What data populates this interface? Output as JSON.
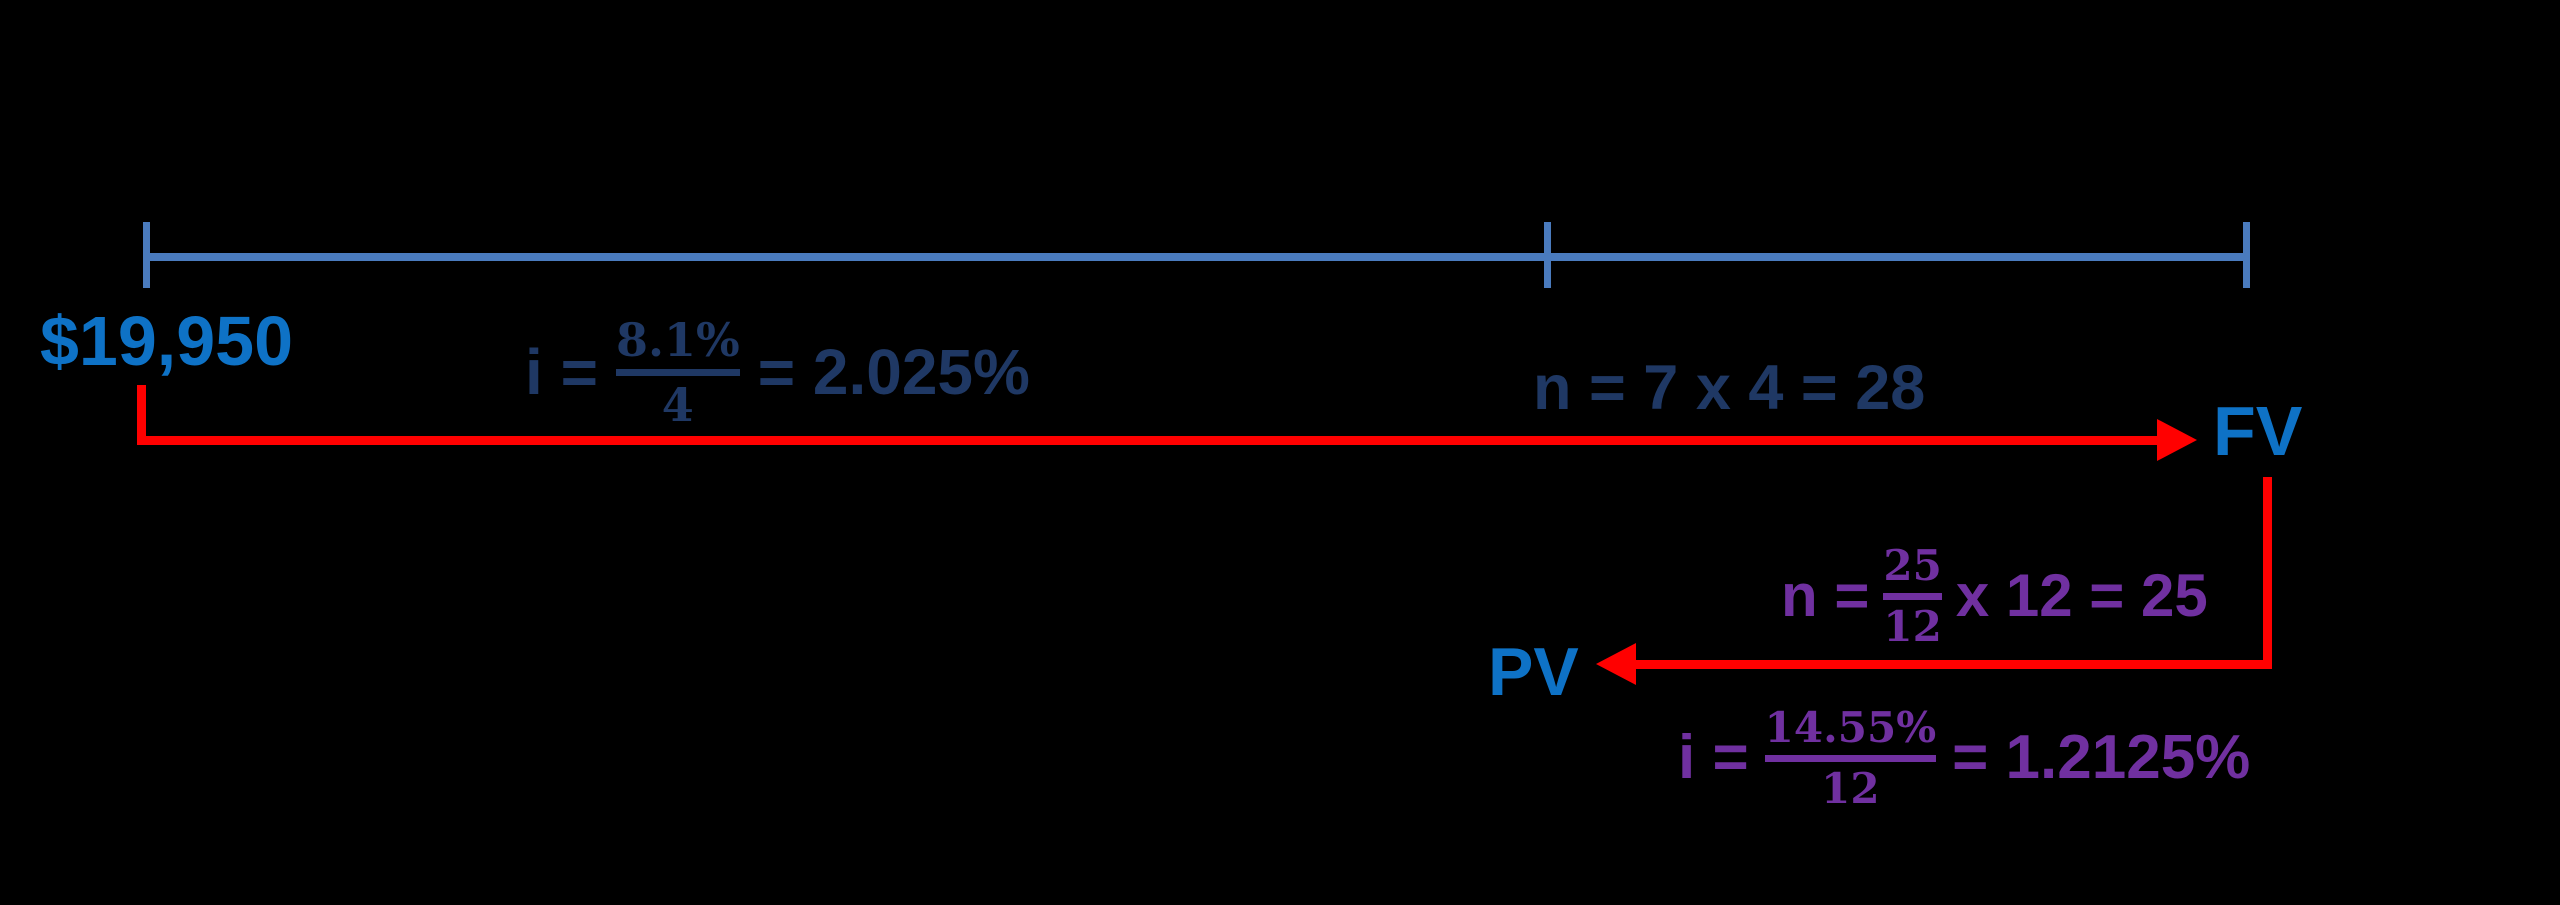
{
  "colors": {
    "background": "#000000",
    "timeline_blue": "#4A7BBE",
    "value_blue": "#0E72C6",
    "formula_navy": "#1F3864",
    "formula_purple": "#7030A0",
    "arrow_red": "#FF0000"
  },
  "nodes": {
    "principal": "$19,950",
    "future_value": "FV",
    "present_value": "PV"
  },
  "quarterly_rate": {
    "lhs": "i =",
    "numerator": "8.1%",
    "denominator": "4",
    "rhs": "= 2.025%"
  },
  "fv_periods": "n = 7 x 4 = 28",
  "monthly_periods": {
    "lhs": "n =",
    "numerator": "25",
    "denominator": "12",
    "rhs": "x 12 = 25"
  },
  "monthly_rate": {
    "lhs": "i =",
    "numerator": "14.55%",
    "denominator": "12",
    "rhs": "= 1.2125%"
  }
}
